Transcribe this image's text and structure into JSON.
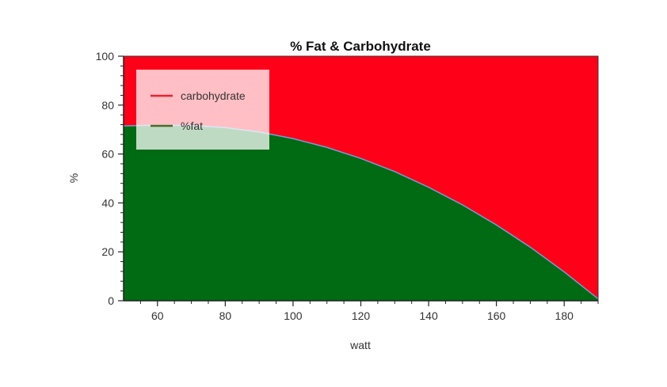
{
  "chart_data": {
    "type": "area",
    "title": "% Fat & Carbohydrate",
    "xlabel": "watt",
    "ylabel": "%",
    "xlim": [
      50,
      190
    ],
    "ylim": [
      0,
      100
    ],
    "x_ticks": [
      60,
      80,
      100,
      120,
      140,
      160,
      180
    ],
    "y_ticks": [
      0,
      20,
      40,
      60,
      80,
      100
    ],
    "grid": false,
    "legend_position": "top-left",
    "x": [
      50,
      60,
      70,
      80,
      90,
      100,
      110,
      120,
      130,
      140,
      150,
      160,
      170,
      180,
      190
    ],
    "series": [
      {
        "name": "carbohydrate",
        "color": "#ff0019",
        "values": [
          28.5,
          28.2,
          28.3,
          29.2,
          31.0,
          33.7,
          37.3,
          41.8,
          47.2,
          53.6,
          60.8,
          69.0,
          78.1,
          88.2,
          99.2
        ]
      },
      {
        "name": "%fat",
        "color": "#006b12",
        "values": [
          71.5,
          71.8,
          71.7,
          70.8,
          69.0,
          66.3,
          62.7,
          58.2,
          52.8,
          46.4,
          39.2,
          31.0,
          21.9,
          11.8,
          0.8
        ]
      }
    ],
    "boundary_line_color": "#6aa2d9",
    "legend_line_colors": {
      "carbohydrate": "#e8222f",
      "%fat": "#4f6a2a"
    }
  }
}
